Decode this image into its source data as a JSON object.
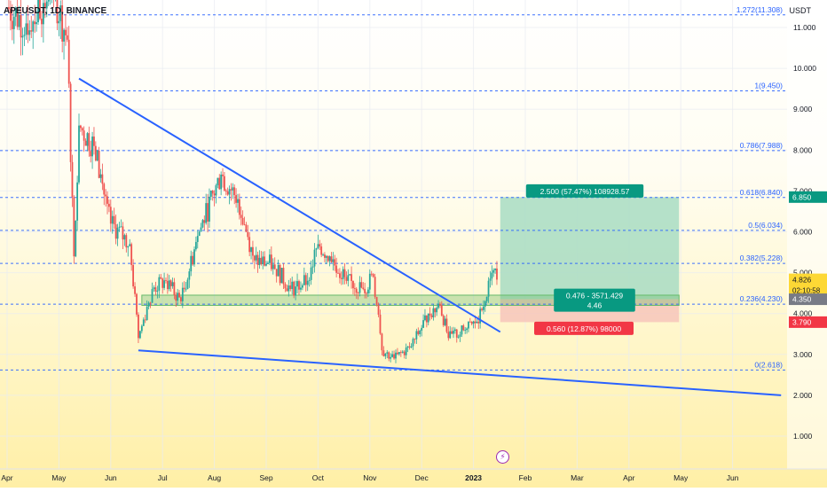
{
  "title": "APEUSDT, 1D, BINANCE",
  "unit": "USDT",
  "event_icon": "lightning-icon",
  "colors": {
    "trendline": "#2962ff",
    "fib_line": "#2962ff",
    "candle_up": "#26a69a",
    "candle_down": "#ef5350",
    "profit_zone": "#a8dcc3",
    "loss_zone": "#f7c6bb",
    "support_zone": "#66bb6a",
    "profit_label": "#089981",
    "loss_label": "#f23645",
    "current_price": "#fdd835"
  },
  "chart_data": {
    "type": "candlestick",
    "x_axis": {
      "type": "date",
      "range": [
        "2022-04-01",
        "2023-06-30"
      ],
      "tick_labels": [
        {
          "date": "2022-04-01",
          "label": "Apr"
        },
        {
          "date": "2022-05-01",
          "label": "May"
        },
        {
          "date": "2022-06-01",
          "label": "Jun"
        },
        {
          "date": "2022-07-01",
          "label": "Jul"
        },
        {
          "date": "2022-08-01",
          "label": "Aug"
        },
        {
          "date": "2022-09-01",
          "label": "Sep"
        },
        {
          "date": "2022-10-01",
          "label": "Oct"
        },
        {
          "date": "2022-11-01",
          "label": "Nov"
        },
        {
          "date": "2022-12-01",
          "label": "Dec"
        },
        {
          "date": "2023-01-01",
          "label": "2023"
        },
        {
          "date": "2023-02-01",
          "label": "Feb"
        },
        {
          "date": "2023-03-01",
          "label": "Mar"
        },
        {
          "date": "2023-04-01",
          "label": "Apr"
        },
        {
          "date": "2023-05-01",
          "label": "May"
        },
        {
          "date": "2023-06-01",
          "label": "Jun"
        }
      ]
    },
    "y_axis": {
      "range": [
        0.35,
        11.9
      ],
      "ticks": [
        "11.000",
        "10.000",
        "9.000",
        "8.000",
        "7.000",
        "6.000",
        "5.000",
        "4.000",
        "3.000",
        "2.000",
        "1.000"
      ]
    },
    "price_path": [
      {
        "date": "2022-04-01",
        "close": 11.5
      },
      {
        "date": "2022-04-12",
        "close": 11.1
      },
      {
        "date": "2022-04-22",
        "close": 11.6
      },
      {
        "date": "2022-04-28",
        "close": 11.9
      },
      {
        "date": "2022-05-06",
        "close": 10.7
      },
      {
        "date": "2022-05-10",
        "close": 5.4
      },
      {
        "date": "2022-05-13",
        "close": 8.6
      },
      {
        "date": "2022-05-22",
        "close": 8.1
      },
      {
        "date": "2022-06-01",
        "close": 6.2
      },
      {
        "date": "2022-06-12",
        "close": 5.7
      },
      {
        "date": "2022-06-17",
        "close": 3.4
      },
      {
        "date": "2022-06-25",
        "close": 4.6
      },
      {
        "date": "2022-07-03",
        "close": 4.8
      },
      {
        "date": "2022-07-12",
        "close": 4.3
      },
      {
        "date": "2022-07-22",
        "close": 5.9
      },
      {
        "date": "2022-08-05",
        "close": 7.4
      },
      {
        "date": "2022-08-15",
        "close": 6.8
      },
      {
        "date": "2022-08-25",
        "close": 5.3
      },
      {
        "date": "2022-09-05",
        "close": 5.2
      },
      {
        "date": "2022-09-15",
        "close": 4.6
      },
      {
        "date": "2022-09-25",
        "close": 4.8
      },
      {
        "date": "2022-10-01",
        "close": 5.7
      },
      {
        "date": "2022-10-08",
        "close": 5.4
      },
      {
        "date": "2022-10-18",
        "close": 4.8
      },
      {
        "date": "2022-10-28",
        "close": 4.6
      },
      {
        "date": "2022-11-03",
        "close": 4.9
      },
      {
        "date": "2022-11-08",
        "close": 3.1
      },
      {
        "date": "2022-11-15",
        "close": 2.9
      },
      {
        "date": "2022-11-25",
        "close": 3.2
      },
      {
        "date": "2022-12-05",
        "close": 4.0
      },
      {
        "date": "2022-12-12",
        "close": 4.2
      },
      {
        "date": "2022-12-17",
        "close": 3.4
      },
      {
        "date": "2022-12-27",
        "close": 3.6
      },
      {
        "date": "2023-01-03",
        "close": 3.8
      },
      {
        "date": "2023-01-08",
        "close": 4.3
      },
      {
        "date": "2023-01-12",
        "close": 5.0
      },
      {
        "date": "2023-01-15",
        "close": 4.83
      }
    ],
    "fib_levels": [
      {
        "ratio": "1.272",
        "price": 11.308,
        "label": "1.272(11.308)"
      },
      {
        "ratio": "1",
        "price": 9.45,
        "label": "1(9.450)"
      },
      {
        "ratio": "0.786",
        "price": 7.988,
        "label": "0.786(7.988)"
      },
      {
        "ratio": "0.618",
        "price": 6.84,
        "label": "0.618(6.840)"
      },
      {
        "ratio": "0.5",
        "price": 6.034,
        "label": "0.5(6.034)"
      },
      {
        "ratio": "0.382",
        "price": 5.228,
        "label": "0.382(5.228)"
      },
      {
        "ratio": "0.236",
        "price": 4.23,
        "label": "0.236(4.230)"
      },
      {
        "ratio": "0",
        "price": 2.618,
        "label": "0(2.618)"
      }
    ],
    "trendlines": [
      {
        "name": "upper",
        "from": {
          "date": "2022-05-13",
          "price": 9.75
        },
        "to": {
          "date": "2023-01-17",
          "price": 3.55
        }
      },
      {
        "name": "lower",
        "from": {
          "date": "2022-06-17",
          "price": 3.1
        },
        "to": {
          "date": "2023-06-30",
          "price": 2.0
        }
      }
    ],
    "support_zone": {
      "from_date": "2022-06-19",
      "to_date": "2023-04-30",
      "low": 4.2,
      "high": 4.45
    },
    "position": {
      "from_date": "2023-01-17",
      "to_date": "2023-04-30",
      "entry": 4.35,
      "target": 6.85,
      "stop": 3.79,
      "target_label": "2.500 (57.47%) 108928.57",
      "stop_label": "0.560 (12.87%) 98000",
      "entry_label_line1": "0.476 - 3571.429",
      "entry_label_line2": "4.46"
    },
    "price_tags": {
      "current": "4.826",
      "countdown": "02:10:58",
      "target": "6.850",
      "entry": "4.350",
      "stop": "3.790"
    }
  }
}
